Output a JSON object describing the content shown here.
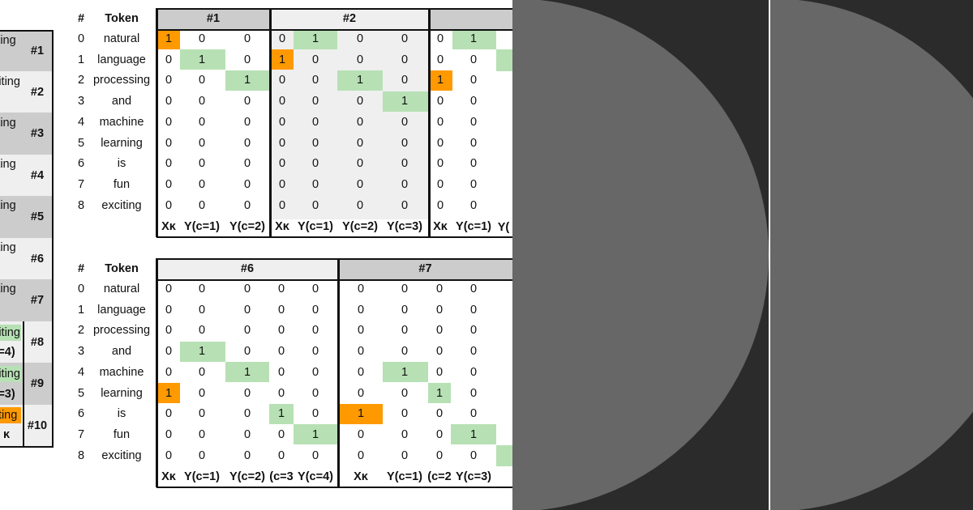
{
  "headers": {
    "index": "#",
    "token": "Token"
  },
  "tokens": [
    "natural",
    "language",
    "processing",
    "and",
    "machine",
    "learning",
    "is",
    "fun",
    "exciting"
  ],
  "left_strip": {
    "groups": [
      "#1",
      "#2",
      "#3",
      "#4",
      "#5",
      "#6",
      "#7",
      "#8",
      "#9",
      "#10"
    ],
    "cells": [
      "ting",
      "citing",
      "ting",
      "ting",
      "ting",
      "ting",
      "ting",
      "citing",
      "citing",
      "iting"
    ],
    "tails": [
      "=4)",
      "=3)",
      "κ"
    ]
  },
  "top_table": {
    "groups": [
      "#1",
      "#2"
    ],
    "footers": [
      "Xκ",
      "Y(c=1)",
      "Y(c=2)",
      "Xκ",
      "Y(c=1)",
      "Y(c=2)",
      "Y(c=3)",
      "Xκ",
      "Y(c=1)",
      "Y("
    ],
    "rows": [
      [
        "1",
        "0",
        "0",
        "0",
        "1",
        "0",
        "0",
        "0",
        "1"
      ],
      [
        "0",
        "1",
        "0",
        "1",
        "0",
        "0",
        "0",
        "0",
        "0"
      ],
      [
        "0",
        "0",
        "1",
        "0",
        "0",
        "1",
        "0",
        "1",
        "0"
      ],
      [
        "0",
        "0",
        "0",
        "0",
        "0",
        "0",
        "1",
        "0",
        "0"
      ],
      [
        "0",
        "0",
        "0",
        "0",
        "0",
        "0",
        "0",
        "0",
        "0"
      ],
      [
        "0",
        "0",
        "0",
        "0",
        "0",
        "0",
        "0",
        "0",
        "0"
      ],
      [
        "0",
        "0",
        "0",
        "0",
        "0",
        "0",
        "0",
        "0",
        "0"
      ],
      [
        "0",
        "0",
        "0",
        "0",
        "0",
        "0",
        "0",
        "0",
        "0"
      ],
      [
        "0",
        "0",
        "0",
        "0",
        "0",
        "0",
        "0",
        "0",
        "0"
      ]
    ]
  },
  "bottom_table": {
    "groups": [
      "#6",
      "#7"
    ],
    "footers": [
      "Xκ",
      "Y(c=1)",
      "Y(c=2)",
      "(c=3",
      "Y(c=4)",
      "Xκ",
      "Y(c=1)",
      "(c=2",
      "Y(c=3)"
    ],
    "rows": [
      [
        "0",
        "0",
        "0",
        "0",
        "0",
        "0",
        "0",
        "0",
        "0"
      ],
      [
        "0",
        "0",
        "0",
        "0",
        "0",
        "0",
        "0",
        "0",
        "0"
      ],
      [
        "0",
        "0",
        "0",
        "0",
        "0",
        "0",
        "0",
        "0",
        "0"
      ],
      [
        "0",
        "1",
        "0",
        "0",
        "0",
        "0",
        "0",
        "0",
        "0"
      ],
      [
        "0",
        "0",
        "1",
        "0",
        "0",
        "0",
        "1",
        "0",
        "0"
      ],
      [
        "1",
        "0",
        "0",
        "0",
        "0",
        "0",
        "0",
        "1",
        "0"
      ],
      [
        "0",
        "0",
        "0",
        "1",
        "0",
        "1",
        "0",
        "0",
        "0"
      ],
      [
        "0",
        "0",
        "0",
        "0",
        "1",
        "0",
        "0",
        "0",
        "1"
      ],
      [
        "0",
        "0",
        "0",
        "0",
        "0",
        "0",
        "0",
        "0",
        "0"
      ]
    ]
  },
  "colors": {
    "center": "#ff9900",
    "context": "#b7e1b4",
    "header_bg": "#efefef",
    "header_dark": "#cccccc",
    "panel": "#2b2b2b",
    "disc": "#676767"
  }
}
